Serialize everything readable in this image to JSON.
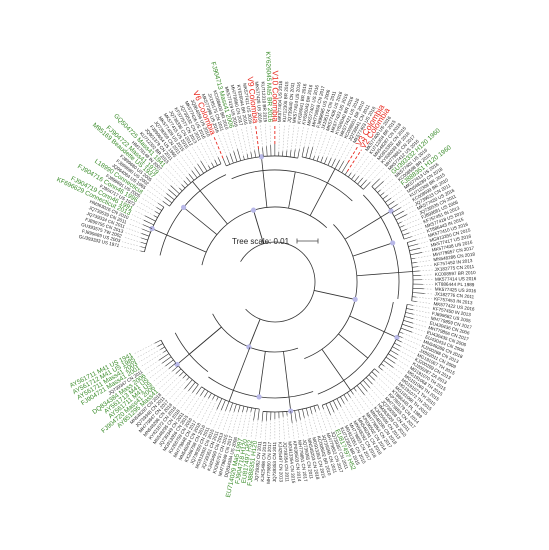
{
  "figure": {
    "scale_label": "Tree scale: 0.01",
    "colors": {
      "reference": "#3a8c2a",
      "colombia": "#e8281e",
      "default": "#222222",
      "branch": "#333333",
      "bootstrap": "#b8b8e8",
      "guide": "#9a9a9a"
    }
  },
  "leaves": [
    {
      "label": "GU393333 US 1971",
      "group": "default"
    },
    {
      "label": "FJ899689 US 2003",
      "group": "default"
    },
    {
      "label": "GU393575 TW 2002",
      "group": "default"
    },
    {
      "label": "FJ899755 CN 2013",
      "group": "default"
    },
    {
      "label": "JQ739334 CN 2011",
      "group": "default"
    },
    {
      "label": "JQ739539 CN 2011",
      "group": "default"
    },
    {
      "label": "HM363026 CN 2010",
      "group": "default"
    },
    {
      "label": "KF696629 Connecticut 2013",
      "group": "reference"
    },
    {
      "label": "FJ904719 Conn46 1991",
      "group": "reference"
    },
    {
      "label": "FJ904717 US 1972",
      "group": "default"
    },
    {
      "label": "FJ904716 Conn46 1996",
      "group": "reference"
    },
    {
      "label": "FJ899691 US 2005",
      "group": "default"
    },
    {
      "label": "L18990 Connecticut",
      "group": "reference"
    },
    {
      "label": "JQ964064 US 1965",
      "group": "default"
    },
    {
      "label": "FJ899690 US 2002",
      "group": "default"
    },
    {
      "label": "FJ899680 US 2005",
      "group": "default"
    },
    {
      "label": "M95169 Beaudette US 1937",
      "group": "reference"
    },
    {
      "label": "FJ904722 Mass41 1979",
      "group": "reference"
    },
    {
      "label": "HM179148 IN 2007",
      "group": "default"
    },
    {
      "label": "GQ504725 Mass41 1941",
      "group": "reference"
    },
    {
      "label": "KU712302 BR 2015",
      "group": "default"
    },
    {
      "label": "JQ901379 CN 2011",
      "group": "default"
    },
    {
      "label": "FJ899654 US 1965",
      "group": "default"
    },
    {
      "label": "JQ739359 CN 2011",
      "group": "default"
    },
    {
      "label": "MK577409 US 2015",
      "group": "default"
    },
    {
      "label": "MK577415 US 2015",
      "group": "default"
    },
    {
      "label": "JQ739336 CN 2012",
      "group": "default"
    },
    {
      "label": "KF377577 CN 2013",
      "group": "default"
    },
    {
      "label": "JQ739532 CN 2011",
      "group": "default"
    },
    {
      "label": "MK577426 US 2016",
      "group": "default"
    },
    {
      "label": "JQ964056 US 2010",
      "group": "default"
    },
    {
      "label": "V6 Colombia",
      "group": "colombia"
    },
    {
      "label": "MK577398 US 2016",
      "group": "default"
    },
    {
      "label": "JX195175 CN 2011",
      "group": "default"
    },
    {
      "label": "KC008600 BR 2010",
      "group": "default"
    },
    {
      "label": "FJ904713 Mass41 2006",
      "group": "reference"
    },
    {
      "label": "MK577419 US 2016",
      "group": "default"
    },
    {
      "label": "MH779860 CN 2017",
      "group": "default"
    },
    {
      "label": "KY626044 BR 2016",
      "group": "default"
    },
    {
      "label": "MK577411 US 2016",
      "group": "default"
    },
    {
      "label": "V9 Colombia",
      "group": "colombia"
    },
    {
      "label": "MK577428 US 2016",
      "group": "default"
    },
    {
      "label": "KU712310 BR 2015",
      "group": "default"
    },
    {
      "label": "KY626045 Ma5 BR 2016",
      "group": "reference"
    },
    {
      "label": "V10 Colombia",
      "group": "colombia"
    },
    {
      "label": "MK577404 US 2016",
      "group": "default"
    },
    {
      "label": "KU712305 BR 2015",
      "group": "default"
    },
    {
      "label": "JQ739540 CN 2011",
      "group": "default"
    },
    {
      "label": "MK577424 US 2016",
      "group": "default"
    },
    {
      "label": "KY626041 BR 2016",
      "group": "default"
    },
    {
      "label": "KY626043 BR 2016",
      "group": "default"
    },
    {
      "label": "MK577407 US 2016",
      "group": "default"
    },
    {
      "label": "MH779858 CN 2017",
      "group": "default"
    },
    {
      "label": "FJ899685 US 2006",
      "group": "default"
    },
    {
      "label": "JX195174 CN 2011",
      "group": "default"
    },
    {
      "label": "MK577406 US 2016",
      "group": "default"
    },
    {
      "label": "MK577423 US 2016",
      "group": "default"
    },
    {
      "label": "KY626040 BR 2016",
      "group": "default"
    },
    {
      "label": "MK577421 US 2016",
      "group": "default"
    },
    {
      "label": "KC008601 BR 2010",
      "group": "default"
    },
    {
      "label": "JQ739541 CN 2011",
      "group": "default"
    },
    {
      "label": "MK577403 US 2016",
      "group": "default"
    },
    {
      "label": "V3 Colombia",
      "group": "colombia"
    },
    {
      "label": "V2 Colombia",
      "group": "colombia"
    },
    {
      "label": "MK577400 US 2016",
      "group": "default"
    },
    {
      "label": "KU712304 BR 2015",
      "group": "default"
    },
    {
      "label": "MN548287 CN 2018",
      "group": "default"
    },
    {
      "label": "MG913352 CN 2015",
      "group": "default"
    },
    {
      "label": "KY626039 BR 2016",
      "group": "default"
    },
    {
      "label": "MH779861 CN 2017",
      "group": "default"
    },
    {
      "label": "MK577412 US 2016",
      "group": "default"
    },
    {
      "label": "GU393332 H120 1960",
      "group": "reference"
    },
    {
      "label": "MK577401 US 2016",
      "group": "default"
    },
    {
      "label": "KC008598 BR 2010",
      "group": "default"
    },
    {
      "label": "FJ888351 H120 1960",
      "group": "reference"
    },
    {
      "label": "MK577413 US 2016",
      "group": "default"
    },
    {
      "label": "MN548289 CN 2018",
      "group": "default"
    },
    {
      "label": "KU712309 BR 2015",
      "group": "default"
    },
    {
      "label": "KC008599 BR 2010",
      "group": "default"
    },
    {
      "label": "JQ739533 CN 2011",
      "group": "default"
    },
    {
      "label": "MK577420 US 2016",
      "group": "default"
    },
    {
      "label": "JQ739535 CN 2011",
      "group": "default"
    },
    {
      "label": "FJ899681 US 2006",
      "group": "default"
    },
    {
      "label": "KF757451 IN 2013",
      "group": "default"
    },
    {
      "label": "MK577418 US 2016",
      "group": "default"
    },
    {
      "label": "KT886443 IN 2015",
      "group": "default"
    },
    {
      "label": "MK577410 US 2016",
      "group": "default"
    },
    {
      "label": "MG913350 CN 2015",
      "group": "default"
    },
    {
      "label": "MK577417 US 2016",
      "group": "default"
    },
    {
      "label": "MK577408 US 2016",
      "group": "default"
    },
    {
      "label": "MH779857 CN 2017",
      "group": "default"
    },
    {
      "label": "MN548286 CN 2018",
      "group": "default"
    },
    {
      "label": "KF757452 IN 2013",
      "group": "default"
    },
    {
      "label": "JX182775 CN 2011",
      "group": "default"
    },
    {
      "label": "KC008597 BR 2010",
      "group": "default"
    },
    {
      "label": "MK577414 US 2016",
      "group": "default"
    },
    {
      "label": "KT886444 PL 1989",
      "group": "default"
    },
    {
      "label": "MK577425 US 2016",
      "group": "default"
    },
    {
      "label": "JX182776 CN 2011",
      "group": "default"
    },
    {
      "label": "KF757453 IN 2013",
      "group": "default"
    },
    {
      "label": "MK577422 US 2016",
      "group": "default"
    },
    {
      "label": "KF757450 IN 2013",
      "group": "default"
    },
    {
      "label": "FJ899682 US 2005",
      "group": "default"
    },
    {
      "label": "MH779859 CN 2017",
      "group": "default"
    },
    {
      "label": "EU430436 CN 2006",
      "group": "default"
    },
    {
      "label": "MH779856 CN 2017",
      "group": "default"
    },
    {
      "label": "EU430435 CN 2006",
      "group": "default"
    },
    {
      "label": "EU430434 CN 2006",
      "group": "default"
    },
    {
      "label": "MN548288 CN 2018",
      "group": "default"
    },
    {
      "label": "KJ200288 CN 2013",
      "group": "default"
    },
    {
      "label": "JX892011 CN 2009",
      "group": "default"
    },
    {
      "label": "MG191067 TH 2015",
      "group": "default"
    },
    {
      "label": "KJ200289 CN 2013",
      "group": "default"
    },
    {
      "label": "KJ200287 ZA 2013",
      "group": "default"
    },
    {
      "label": "MG191070 TH 2015",
      "group": "default"
    },
    {
      "label": "MG191068 TH 2015",
      "group": "default"
    },
    {
      "label": "MG191069 TH 2015",
      "group": "default"
    },
    {
      "label": "MG191071 TH 2015",
      "group": "default"
    },
    {
      "label": "MG191072 TH 2015",
      "group": "default"
    },
    {
      "label": "MG191066 TH 2015",
      "group": "default"
    },
    {
      "label": "KT886445 PL 1989",
      "group": "default"
    },
    {
      "label": "KP780179 CN 2014",
      "group": "default"
    },
    {
      "label": "MH779855 CN 2017",
      "group": "default"
    },
    {
      "label": "JQ739358 CN 2011",
      "group": "default"
    },
    {
      "label": "HM363029 CN 2010",
      "group": "default"
    },
    {
      "label": "KJ425496 CN 2013",
      "group": "default"
    },
    {
      "label": "MN548290 CN 2018",
      "group": "default"
    },
    {
      "label": "MH779854 CN 2017",
      "group": "default"
    },
    {
      "label": "KP036502 CN 2014",
      "group": "default"
    },
    {
      "label": "MN548291 CN 2018",
      "group": "default"
    },
    {
      "label": "MN548292 CN 2018",
      "group": "default"
    },
    {
      "label": "MH779853 CN 2017",
      "group": "default"
    },
    {
      "label": "MG913351 CN 2015",
      "group": "default"
    },
    {
      "label": "KU712306 BR 2015",
      "group": "default"
    },
    {
      "label": "EU817497 H52",
      "group": "reference"
    },
    {
      "label": "JQ739357 CN 2011",
      "group": "default"
    },
    {
      "label": "MH779852 CN 2017",
      "group": "default"
    },
    {
      "label": "JQ739356 CN 2011",
      "group": "default"
    },
    {
      "label": "KC008602 BR 2010",
      "group": "default"
    },
    {
      "label": "MG913353 CN 2015",
      "group": "default"
    },
    {
      "label": "MN548293 CN 2018",
      "group": "default"
    },
    {
      "label": "JQ739355 CN 2011",
      "group": "default"
    },
    {
      "label": "MH779851 CN 2017",
      "group": "default"
    },
    {
      "label": "KP036503 CN 2014",
      "group": "default"
    },
    {
      "label": "MG913354 CN 2015",
      "group": "default"
    },
    {
      "label": "JQ739354 CN 2011",
      "group": "default"
    },
    {
      "label": "KJ425497 CN 2013",
      "group": "default"
    },
    {
      "label": "JQ739353 CN 2011",
      "group": "default"
    },
    {
      "label": "MH779850 CN 2017",
      "group": "default"
    },
    {
      "label": "KJ425498 CN 2013",
      "group": "default"
    },
    {
      "label": "JQ739352 CN 2011",
      "group": "default"
    },
    {
      "label": "FJ888351 H120",
      "group": "reference"
    },
    {
      "label": "EU817497 H52",
      "group": "reference"
    },
    {
      "label": "FJ904718 H120",
      "group": "reference"
    },
    {
      "label": "EU714029 Ma5 1997",
      "group": "reference"
    },
    {
      "label": "DQ834384 US 2006",
      "group": "default"
    },
    {
      "label": "MH779849 CN 2017",
      "group": "default"
    },
    {
      "label": "KX266757 CN 2015",
      "group": "default"
    },
    {
      "label": "KJ425499 CN 2013",
      "group": "default"
    },
    {
      "label": "JQ739351 CN 2011",
      "group": "default"
    },
    {
      "label": "MG913355 CN 2015",
      "group": "default"
    },
    {
      "label": "JQ739350 CN 2011",
      "group": "default"
    },
    {
      "label": "KX266758 CN 2016",
      "group": "default"
    },
    {
      "label": "MN548294 CN 2018",
      "group": "default"
    },
    {
      "label": "MH779848 CN 2017",
      "group": "default"
    },
    {
      "label": "KX266759 CN 2016",
      "group": "default"
    },
    {
      "label": "MG913356 CN 2015",
      "group": "default"
    },
    {
      "label": "JQ739349 CN 2011",
      "group": "default"
    },
    {
      "label": "MN548295 CN 2018",
      "group": "default"
    },
    {
      "label": "KY421672 CN 2016",
      "group": "default"
    },
    {
      "label": "MN548296 CN 2018",
      "group": "default"
    },
    {
      "label": "MH779847 CN 2017",
      "group": "default"
    },
    {
      "label": "JQ739348 CN 2011",
      "group": "default"
    },
    {
      "label": "MN548297 CN 2018",
      "group": "default"
    },
    {
      "label": "AY851295 Mass41",
      "group": "reference"
    },
    {
      "label": "FJ904720 Mass41 2006",
      "group": "reference"
    },
    {
      "label": "AY561711 M41 US",
      "group": "reference"
    },
    {
      "label": "AY561713 M41 US",
      "group": "reference"
    },
    {
      "label": "DQ834384 Mass 2006",
      "group": "reference"
    },
    {
      "label": "JQ739347 CN 2011",
      "group": "default"
    },
    {
      "label": "FJ904721 Mass41 2001",
      "group": "reference"
    },
    {
      "label": "AY561711 Mass41 2003",
      "group": "reference"
    },
    {
      "label": "AY561712 M41 US 1985",
      "group": "reference"
    },
    {
      "label": "AY561711 M41 US 1941",
      "group": "reference"
    }
  ]
}
